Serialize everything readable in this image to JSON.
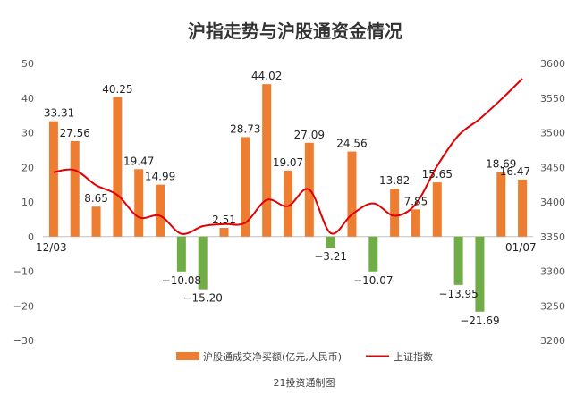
{
  "chart_data": {
    "type": "bar",
    "title": "沪指走势与沪股通资金情况",
    "source": "21投资通制图",
    "first_date_label": "12/03",
    "last_date_label": "01/07",
    "series": [
      {
        "name": "沪股通成交净买额(亿元,人民币)",
        "type": "bar",
        "axis": "left",
        "color": "#ED7D31",
        "negative_color": "#70AD47",
        "values": [
          33.31,
          27.56,
          8.65,
          40.25,
          19.47,
          14.99,
          -10.08,
          -15.2,
          2.51,
          28.73,
          44.02,
          19.07,
          27.09,
          -3.21,
          24.56,
          -10.07,
          13.82,
          7.85,
          15.65,
          -13.95,
          -21.69,
          18.69,
          16.47
        ],
        "labels": [
          "33.31",
          "27.56",
          "8.65",
          "40.25",
          "19.47",
          "14.99",
          "−10.08",
          "−15.20",
          "2.51",
          "28.73",
          "44.02",
          "19.07",
          "27.09",
          "−3.21",
          "24.56",
          "−10.07",
          "13.82",
          "7.85",
          "15.65",
          "−13.95",
          "−21.69",
          "18.69",
          "16.47"
        ]
      },
      {
        "name": "上证指数",
        "type": "line",
        "axis": "right",
        "color": "#E00000",
        "values": [
          3443,
          3446,
          3424,
          3410,
          3378,
          3380,
          3354,
          3365,
          3368,
          3370,
          3403,
          3394,
          3418,
          3355,
          3382,
          3398,
          3380,
          3397,
          3452,
          3496,
          3520,
          3548,
          3578
        ]
      }
    ],
    "y_left": {
      "min": -30,
      "max": 50,
      "ticks": [
        -30,
        -20,
        -10,
        0,
        10,
        20,
        30,
        40,
        50
      ]
    },
    "y_right": {
      "min": 3200,
      "max": 3600,
      "ticks": [
        3200,
        3250,
        3300,
        3350,
        3400,
        3450,
        3500,
        3550,
        3600
      ]
    },
    "legend_position": "bottom",
    "grid": false
  }
}
